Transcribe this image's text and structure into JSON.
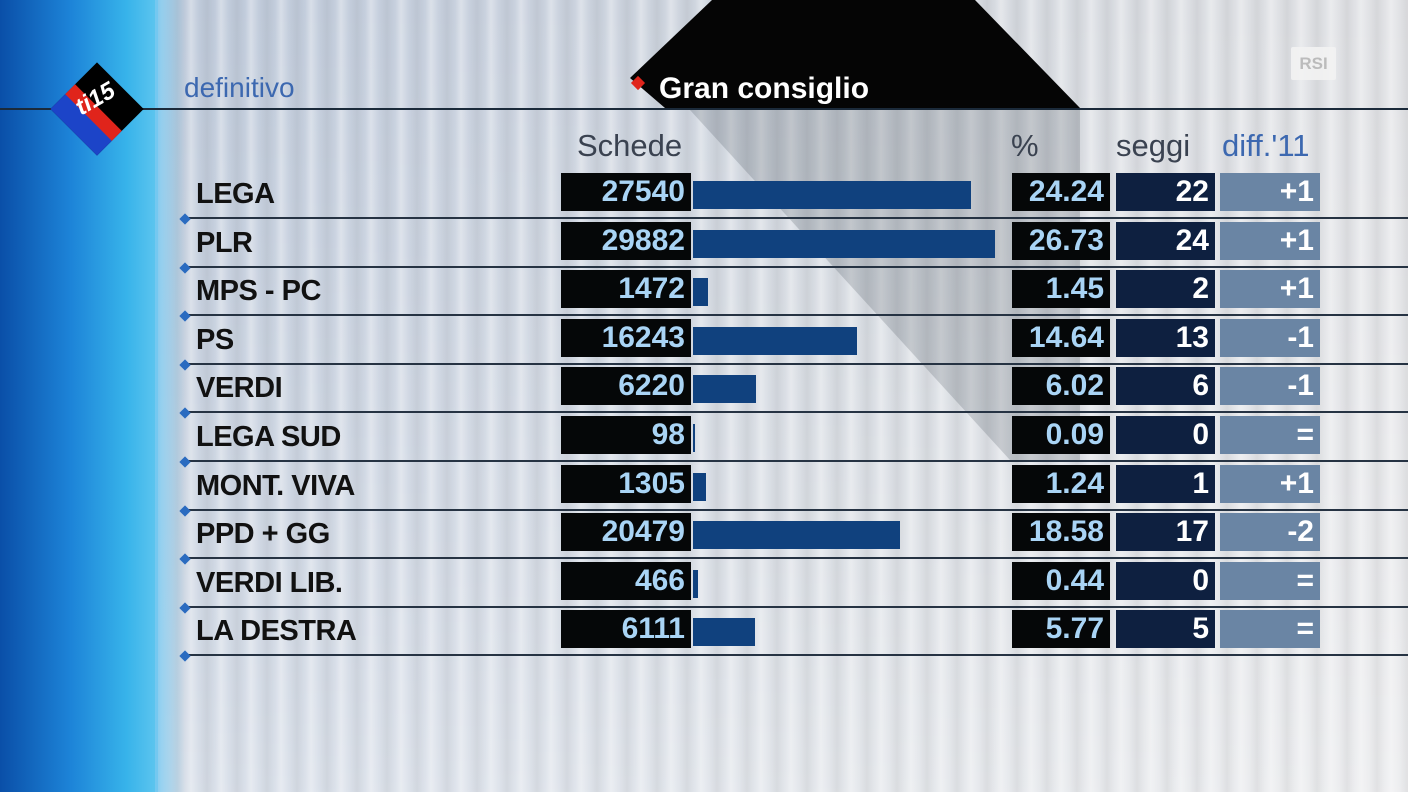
{
  "header": {
    "status": "definitivo",
    "title": "Gran consiglio",
    "logo_text": "ti15",
    "broadcaster_logo": "RSI"
  },
  "columns": {
    "votes": "Schede",
    "pct": "%",
    "seats": "seggi",
    "diff": "diff.'11"
  },
  "colors": {
    "vote_bar": "#10417e",
    "cell_dark": "#050708",
    "seats_bg": "#0e2040",
    "diff_bg": "#6a85a4",
    "accent_blue": "#3c68b0",
    "marker_red": "#e0241b"
  },
  "rows": [
    {
      "party": "LEGA",
      "votes": "27540",
      "pct": "24.24",
      "seats": "22",
      "diff": "+1"
    },
    {
      "party": "PLR",
      "votes": "29882",
      "pct": "26.73",
      "seats": "24",
      "diff": "+1"
    },
    {
      "party": "MPS - PC",
      "votes": "1472",
      "pct": "1.45",
      "seats": "2",
      "diff": "+1"
    },
    {
      "party": "PS",
      "votes": "16243",
      "pct": "14.64",
      "seats": "13",
      "diff": "-1"
    },
    {
      "party": "VERDI",
      "votes": "6220",
      "pct": "6.02",
      "seats": "6",
      "diff": "-1"
    },
    {
      "party": "LEGA SUD",
      "votes": "98",
      "pct": "0.09",
      "seats": "0",
      "diff": "="
    },
    {
      "party": "MONT. VIVA",
      "votes": "1305",
      "pct": "1.24",
      "seats": "1",
      "diff": "+1"
    },
    {
      "party": "PPD + GG",
      "votes": "20479",
      "pct": "18.58",
      "seats": "17",
      "diff": "-2"
    },
    {
      "party": "VERDI LIB.",
      "votes": "466",
      "pct": "0.44",
      "seats": "0",
      "diff": "="
    },
    {
      "party": "LA DESTRA",
      "votes": "6111",
      "pct": "5.77",
      "seats": "5",
      "diff": "="
    }
  ],
  "chart_data": {
    "type": "bar",
    "categories": [
      "LEGA",
      "PLR",
      "MPS - PC",
      "PS",
      "VERDI",
      "LEGA SUD",
      "MONT. VIVA",
      "PPD + GG",
      "VERDI LIB.",
      "LA DESTRA"
    ],
    "values": [
      27540,
      29882,
      1472,
      16243,
      6220,
      98,
      1305,
      20479,
      466,
      6111
    ],
    "title": "Gran consiglio",
    "xlabel": "",
    "ylabel": "Schede",
    "orientation": "horizontal",
    "xlim": [
      0,
      29882
    ],
    "grid": false,
    "legend": "none"
  }
}
